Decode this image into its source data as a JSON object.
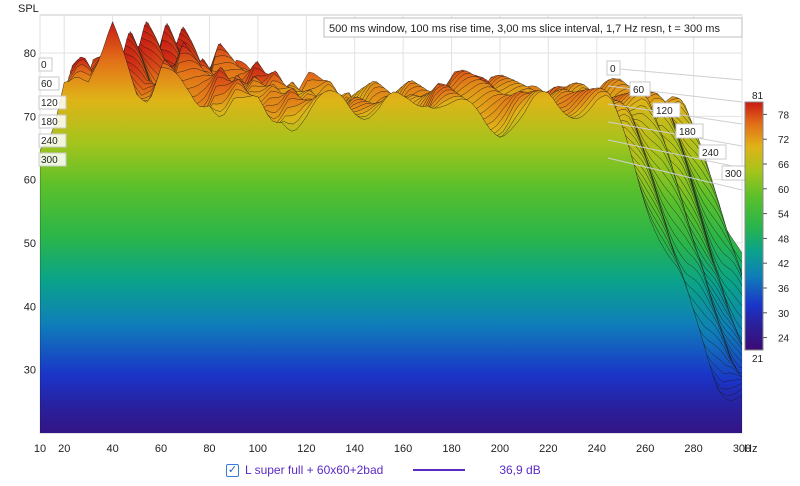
{
  "chart_data": {
    "type": "waterfall",
    "ylabel": "SPL",
    "xunit": "Hz",
    "info": "500 ms window, 100 ms rise time, 3,00 ms slice interval, 1,7 Hz resn, t = 300 ms",
    "x_ticks": [
      10,
      20,
      40,
      60,
      80,
      100,
      120,
      140,
      160,
      180,
      200,
      220,
      240,
      260,
      280,
      300
    ],
    "y_ticks": [
      30,
      40,
      50,
      60,
      70,
      80
    ],
    "ylim": [
      20,
      86
    ],
    "xlim": [
      10,
      300
    ],
    "time_ticks_ms": [
      0,
      60,
      120,
      180,
      240,
      300
    ],
    "colorbar": {
      "min": 21,
      "max": 81,
      "ticks": [
        24,
        30,
        36,
        42,
        48,
        54,
        60,
        66,
        72,
        78
      ]
    },
    "series": [
      {
        "name": "L super full + 60x60+2bad",
        "value_label": "36,9 dB",
        "color": "#5a2bc4"
      }
    ],
    "front_slice": {
      "x": [
        10,
        15,
        20,
        25,
        30,
        35,
        40,
        45,
        50,
        55,
        60,
        65,
        70,
        75,
        80,
        85,
        90,
        95,
        100,
        105,
        110,
        115,
        120,
        125,
        130,
        135,
        140,
        145,
        150,
        155,
        160,
        165,
        170,
        175,
        180,
        185,
        190,
        195,
        200,
        205,
        210,
        215,
        220,
        225,
        230,
        235,
        240,
        245,
        250,
        255,
        260,
        265,
        270,
        275,
        280,
        285,
        290,
        295,
        300
      ],
      "y": [
        62,
        66,
        76,
        77,
        74,
        76,
        82,
        79,
        75,
        74,
        78,
        76,
        74,
        73,
        75,
        73,
        74,
        72,
        72,
        70,
        71,
        69,
        69,
        70,
        71,
        72,
        71,
        70,
        70,
        71,
        71,
        72,
        74,
        74,
        73,
        72,
        71,
        70,
        70,
        71,
        71,
        72,
        72,
        71,
        71,
        71,
        71,
        70,
        66,
        62,
        57,
        52,
        47,
        43,
        38,
        34,
        30,
        28,
        27
      ]
    }
  },
  "legend": {
    "checked": true,
    "label": "L super full + 60x60+2bad",
    "value": "36,9 dB"
  }
}
